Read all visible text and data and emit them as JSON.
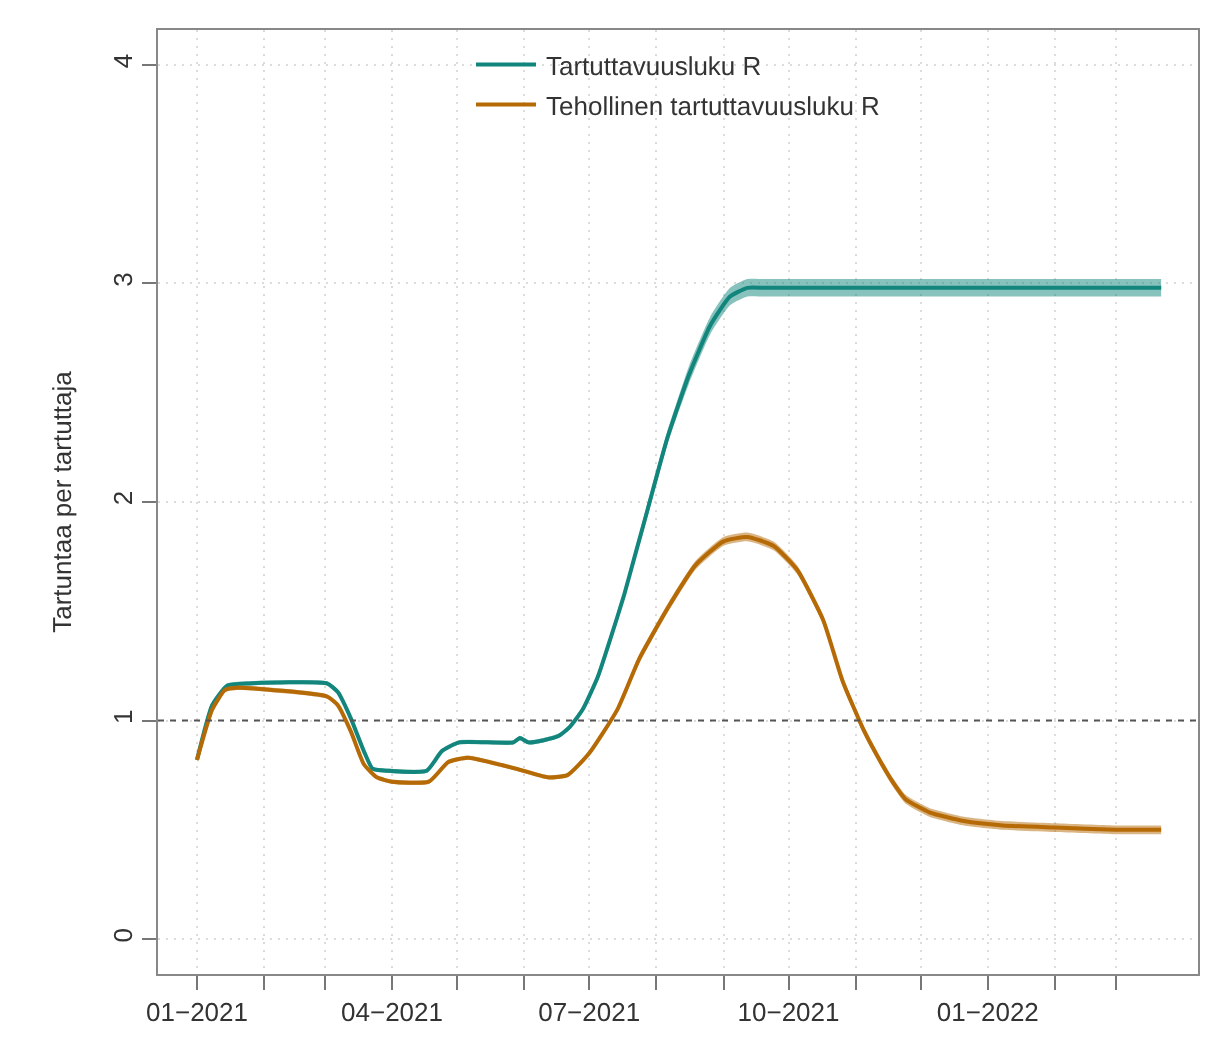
{
  "chart_data": {
    "type": "line",
    "ylabel": "Tartuntaa per tartuttaja",
    "xlim": [
      "2020-12-14",
      "2022-04-08"
    ],
    "ylim": [
      -0.16,
      4.16
    ],
    "xticks": [
      {
        "value": "2021-01-01",
        "label": "01−2021"
      },
      {
        "value": "2021-02-01",
        "label": null
      },
      {
        "value": "2021-03-01",
        "label": null
      },
      {
        "value": "2021-04-01",
        "label": "04−2021"
      },
      {
        "value": "2021-05-01",
        "label": null
      },
      {
        "value": "2021-06-01",
        "label": null
      },
      {
        "value": "2021-07-01",
        "label": "07−2021"
      },
      {
        "value": "2021-08-01",
        "label": null
      },
      {
        "value": "2021-09-01",
        "label": null
      },
      {
        "value": "2021-10-01",
        "label": "10−2021"
      },
      {
        "value": "2021-11-01",
        "label": null
      },
      {
        "value": "2021-12-01",
        "label": null
      },
      {
        "value": "2022-01-01",
        "label": "01−2022"
      },
      {
        "value": "2022-02-01",
        "label": null
      },
      {
        "value": "2022-03-01",
        "label": null
      }
    ],
    "yticks": [
      0,
      1,
      2,
      3,
      4
    ],
    "grid": true,
    "legend": "top",
    "ref_lines": [
      {
        "axis": "y",
        "value": 1,
        "line_style": "dashed",
        "color": "#555555"
      }
    ],
    "series": [
      {
        "name": "Tartuttavuusluku R",
        "color": "#12857c",
        "x": [
          "2021-01-01",
          "2021-01-08",
          "2021-01-15",
          "2021-01-25",
          "2021-03-02",
          "2021-03-07",
          "2021-03-13",
          "2021-03-19",
          "2021-03-23",
          "2021-03-30",
          "2021-04-17",
          "2021-04-24",
          "2021-05-02",
          "2021-05-27",
          "2021-05-30",
          "2021-06-03",
          "2021-06-10",
          "2021-06-17",
          "2021-06-22",
          "2021-06-28",
          "2021-07-05",
          "2021-07-11",
          "2021-07-17",
          "2021-07-22",
          "2021-07-27",
          "2021-08-06",
          "2021-08-16",
          "2021-08-26",
          "2021-09-04",
          "2021-09-12",
          "2021-09-20",
          "2021-10-15",
          "2021-12-01",
          "2022-01-15",
          "2022-03-01",
          "2022-03-22"
        ],
        "values": [
          0.82,
          1.07,
          1.16,
          1.17,
          1.17,
          1.13,
          1.01,
          0.86,
          0.78,
          0.77,
          0.77,
          0.86,
          0.9,
          0.9,
          0.92,
          0.9,
          0.91,
          0.93,
          0.97,
          1.05,
          1.2,
          1.38,
          1.57,
          1.75,
          1.93,
          2.29,
          2.58,
          2.81,
          2.94,
          2.98,
          2.98,
          2.98,
          2.98,
          2.98,
          2.98,
          2.98
        ],
        "lower": [
          0.81,
          1.06,
          1.15,
          1.16,
          1.16,
          1.12,
          1.0,
          0.85,
          0.77,
          0.76,
          0.76,
          0.85,
          0.89,
          0.89,
          0.91,
          0.89,
          0.9,
          0.92,
          0.96,
          1.04,
          1.19,
          1.36,
          1.55,
          1.73,
          1.9,
          2.26,
          2.54,
          2.77,
          2.9,
          2.94,
          2.94,
          2.94,
          2.94,
          2.94,
          2.94,
          2.94
        ],
        "upper": [
          0.83,
          1.08,
          1.17,
          1.18,
          1.18,
          1.14,
          1.02,
          0.87,
          0.79,
          0.78,
          0.78,
          0.87,
          0.91,
          0.91,
          0.93,
          0.91,
          0.92,
          0.94,
          0.98,
          1.06,
          1.21,
          1.4,
          1.59,
          1.77,
          1.96,
          2.32,
          2.62,
          2.85,
          2.98,
          3.02,
          3.02,
          3.02,
          3.02,
          3.02,
          3.02,
          3.02
        ]
      },
      {
        "name": "Tehollinen tartuttavuusluku R",
        "color": "#b56a05",
        "x": [
          "2021-01-01",
          "2021-01-08",
          "2021-01-14",
          "2021-01-20",
          "2021-03-02",
          "2021-03-07",
          "2021-03-13",
          "2021-03-19",
          "2021-03-25",
          "2021-04-01",
          "2021-04-18",
          "2021-04-27",
          "2021-05-06",
          "2021-05-28",
          "2021-06-12",
          "2021-06-21",
          "2021-07-01",
          "2021-07-14",
          "2021-07-24",
          "2021-08-06",
          "2021-08-19",
          "2021-09-01",
          "2021-09-12",
          "2021-09-24",
          "2021-10-05",
          "2021-10-17",
          "2021-10-26",
          "2021-11-05",
          "2021-11-12",
          "2021-11-18",
          "2021-11-24",
          "2021-12-05",
          "2021-12-21",
          "2022-01-08",
          "2022-02-01",
          "2022-03-01",
          "2022-03-22"
        ],
        "values": [
          0.82,
          1.05,
          1.14,
          1.15,
          1.11,
          1.07,
          0.95,
          0.8,
          0.74,
          0.72,
          0.72,
          0.81,
          0.83,
          0.78,
          0.74,
          0.75,
          0.85,
          1.05,
          1.28,
          1.51,
          1.71,
          1.82,
          1.84,
          1.8,
          1.69,
          1.46,
          1.18,
          0.95,
          0.82,
          0.72,
          0.64,
          0.58,
          0.54,
          0.52,
          0.51,
          0.5,
          0.5
        ],
        "lower": [
          0.81,
          1.04,
          1.13,
          1.14,
          1.1,
          1.06,
          0.94,
          0.79,
          0.73,
          0.71,
          0.71,
          0.8,
          0.82,
          0.77,
          0.73,
          0.74,
          0.84,
          1.04,
          1.26,
          1.49,
          1.69,
          1.8,
          1.82,
          1.78,
          1.67,
          1.44,
          1.16,
          0.93,
          0.8,
          0.7,
          0.62,
          0.56,
          0.52,
          0.5,
          0.49,
          0.48,
          0.48
        ],
        "upper": [
          0.83,
          1.06,
          1.15,
          1.16,
          1.12,
          1.08,
          0.96,
          0.81,
          0.75,
          0.73,
          0.73,
          0.82,
          0.84,
          0.79,
          0.75,
          0.76,
          0.86,
          1.06,
          1.3,
          1.53,
          1.73,
          1.84,
          1.86,
          1.82,
          1.71,
          1.48,
          1.2,
          0.97,
          0.84,
          0.74,
          0.66,
          0.6,
          0.56,
          0.54,
          0.53,
          0.52,
          0.52
        ]
      }
    ]
  }
}
